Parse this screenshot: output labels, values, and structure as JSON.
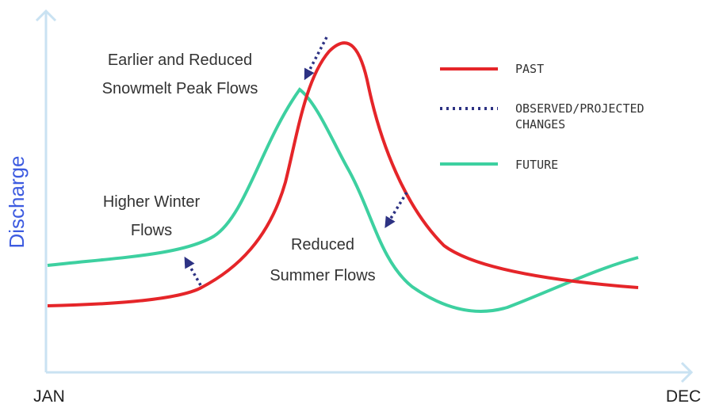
{
  "axes": {
    "y_label": "Discharge",
    "x_start": "JAN",
    "x_end": "DEC"
  },
  "annotations": [
    {
      "lines": [
        "Earlier and Reduced",
        "Snowmelt Peak Flows"
      ]
    },
    {
      "lines": [
        "Higher Winter",
        "Flows"
      ]
    },
    {
      "lines": [
        "Reduced",
        "Summer Flows"
      ]
    }
  ],
  "legend": [
    {
      "lines": [
        "PAST"
      ]
    },
    {
      "lines": [
        "OBSERVED/PROJECTED",
        "CHANGES"
      ]
    },
    {
      "lines": [
        "FUTURE"
      ]
    }
  ]
}
